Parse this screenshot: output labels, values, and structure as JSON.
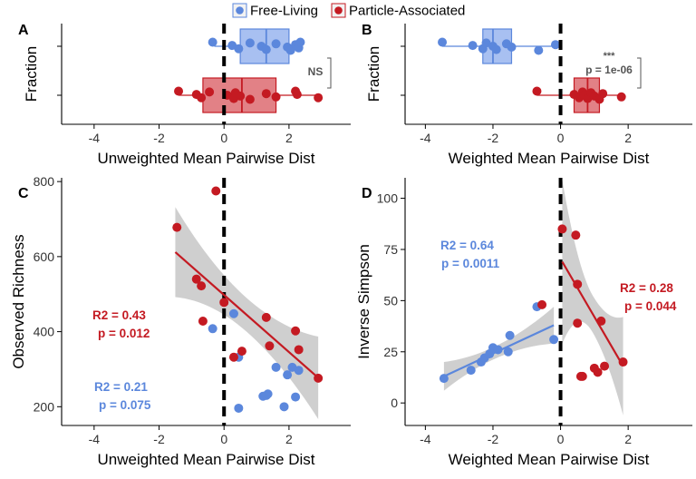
{
  "legend": {
    "placement": "top-center",
    "items": [
      {
        "label": "Free-Living",
        "color": "#5b87dc"
      },
      {
        "label": "Particle-Associated",
        "color": "#c41a22"
      }
    ]
  },
  "colors": {
    "free_living": "#5b87dc",
    "particle_associated": "#c41a22",
    "ribbon": "#cccccc"
  },
  "chart_data": [
    {
      "panel": "A",
      "type": "box",
      "xlabel": "Unweighted Mean Pairwise Dist",
      "ylabel": "Fraction",
      "xlim": [
        -5,
        3.9
      ],
      "xticks": [
        -4,
        -2,
        0,
        2
      ],
      "vline": 0,
      "boxes": [
        {
          "name": "Free-Living",
          "q1": 0.5,
          "median": 1.3,
          "q3": 2.0,
          "whisker_low": -0.3,
          "whisker_high": 2.35,
          "points": [
            -0.35,
            0.25,
            0.45,
            0.8,
            1.15,
            1.3,
            1.6,
            1.95,
            2.05,
            2.2,
            2.3,
            2.35
          ]
        },
        {
          "name": "Particle-Associated",
          "q1": -0.65,
          "median": 0.55,
          "q3": 1.6,
          "whisker_low": -1.4,
          "whisker_high": 2.9,
          "points": [
            -1.4,
            -0.85,
            -0.7,
            -0.45,
            0.1,
            0.3,
            0.35,
            0.5,
            0.8,
            1.3,
            1.6,
            2.2,
            2.25,
            2.9
          ]
        }
      ],
      "annotation": {
        "text_top": "",
        "text_bottom": "NS"
      }
    },
    {
      "panel": "B",
      "type": "box",
      "xlabel": "Weighted Mean Pairwise Dist",
      "ylabel": "Fraction",
      "xlim": [
        -4.6,
        3.9
      ],
      "xticks": [
        -4,
        -2,
        0,
        2
      ],
      "vline": 0,
      "boxes": [
        {
          "name": "Free-Living",
          "q1": -2.3,
          "median": -2.0,
          "q3": -1.45,
          "whisker_low": -3.5,
          "whisker_high": -0.1,
          "points": [
            -3.5,
            -2.6,
            -2.3,
            -2.2,
            -2.0,
            -1.9,
            -1.6,
            -1.45,
            -0.65,
            -0.15
          ]
        },
        {
          "name": "Particle-Associated",
          "q1": 0.4,
          "median": 0.8,
          "q3": 1.15,
          "whisker_low": -0.7,
          "whisker_high": 1.8,
          "points": [
            -0.7,
            0.4,
            0.55,
            0.65,
            0.7,
            0.8,
            0.9,
            1.0,
            1.15,
            1.25,
            1.8
          ]
        }
      ],
      "annotation": {
        "text_top": "***",
        "text_bottom": "p = 1e-06"
      }
    },
    {
      "panel": "C",
      "type": "scatter",
      "xlabel": "Unweighted Mean Pairwise Dist",
      "ylabel": "Observed Richness",
      "xlim": [
        -5,
        3.9
      ],
      "ylim": [
        150,
        810
      ],
      "xticks": [
        -4,
        -2,
        0,
        2
      ],
      "yticks": [
        200,
        400,
        600,
        800
      ],
      "vline": 0,
      "series": [
        {
          "name": "Free-Living",
          "color": "#5b87dc",
          "x": [
            -0.35,
            0.3,
            0.45,
            0.45,
            1.2,
            1.3,
            1.35,
            1.6,
            1.85,
            1.95,
            2.1,
            2.2,
            2.3
          ],
          "y": [
            408,
            448,
            332,
            196,
            228,
            230,
            234,
            305,
            200,
            285,
            305,
            226,
            297
          ],
          "stats": [
            "R2 = 0.21",
            "p = 0.075"
          ]
        },
        {
          "name": "Particle-Associated",
          "color": "#c41a22",
          "x": [
            -1.45,
            -0.85,
            -0.7,
            -0.65,
            -0.25,
            0.0,
            0.3,
            0.55,
            1.3,
            1.4,
            2.2,
            2.3,
            2.9
          ],
          "y": [
            678,
            540,
            522,
            428,
            775,
            478,
            332,
            348,
            438,
            362,
            402,
            352,
            276
          ],
          "stats": [
            "R2 = 0.43",
            "p = 0.012"
          ]
        }
      ],
      "fit": {
        "x0": -1.5,
        "x1": 2.9,
        "y0": 612,
        "y1": 277
      }
    },
    {
      "panel": "D",
      "type": "scatter",
      "xlabel": "Weighted Mean Pairwise Dist",
      "ylabel": "Inverse Simpson",
      "xlim": [
        -4.6,
        3.9
      ],
      "ylim": [
        -11,
        110
      ],
      "xticks": [
        -4,
        -2,
        0,
        2
      ],
      "yticks": [
        0,
        25,
        50,
        75,
        100
      ],
      "vline": 0,
      "series": [
        {
          "name": "Free-Living",
          "color": "#5b87dc",
          "x": [
            -3.45,
            -2.65,
            -2.35,
            -2.25,
            -2.1,
            -2.0,
            -1.85,
            -1.55,
            -1.5,
            -0.7,
            -0.2
          ],
          "y": [
            12,
            16,
            20,
            22,
            24,
            27,
            26,
            25,
            33,
            47,
            31
          ],
          "stats": [
            "R2 = 0.64",
            "p = 0.0011"
          ]
        },
        {
          "name": "Particle-Associated",
          "color": "#c41a22",
          "x": [
            0.05,
            0.45,
            0.5,
            0.5,
            0.6,
            0.65,
            1.0,
            1.1,
            1.2,
            1.3,
            1.85,
            -0.55
          ],
          "y": [
            85,
            82,
            58,
            39,
            13,
            13,
            17,
            15,
            40,
            18,
            20,
            48
          ],
          "stats": [
            "R2 = 0.28",
            "p = 0.044"
          ]
        }
      ],
      "fits": [
        {
          "x0": -3.45,
          "x1": -0.2,
          "y0": 13,
          "y1": 38,
          "color": "#5b87dc"
        },
        {
          "x0": 0.05,
          "x1": 1.85,
          "y0": 69,
          "y1": 18,
          "color": "#c41a22"
        }
      ]
    }
  ]
}
